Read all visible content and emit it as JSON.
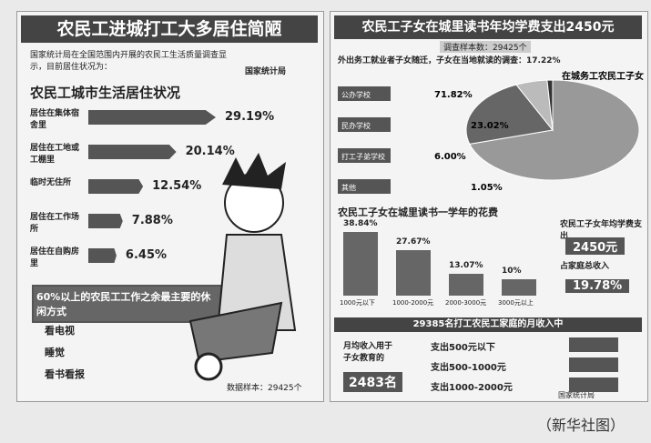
{
  "left": {
    "title": "农民工进城打工大多居住简陋",
    "intro": "国家统计局在全国范围内开展的农民工生活质量调查显示，目前居住状况为：",
    "source": "国家统计局",
    "heading": "农民工城市生活居住状况",
    "items": [
      {
        "label": "居住在集体宿舍里",
        "value": 29.19,
        "text": "29.19%"
      },
      {
        "label": "居住在工地或工棚里",
        "value": 20.14,
        "text": "20.14%"
      },
      {
        "label": "临时无住所",
        "value": 12.54,
        "text": "12.54%"
      },
      {
        "label": "居住在工作场所",
        "value": 7.88,
        "text": "7.88%"
      },
      {
        "label": "居住在自购房里",
        "value": 6.45,
        "text": "6.45%"
      }
    ],
    "leisure": {
      "title": "60%以上的农民工工作之余最主要的休闲方式",
      "items": [
        "看电视",
        "睡觉",
        "看书看报"
      ]
    },
    "sample": "数据样本：29425个"
  },
  "right": {
    "title": "农民工子女在城里读书年均学费支出2450元",
    "sample": "调查样本数：29425个",
    "note": "外出务工就业者子女随迁，子女在当地就读的调查：17.22%",
    "pie": {
      "title": "在城务工农民工子女",
      "slices": [
        {
          "label": "公办学校",
          "value": 71.82,
          "text": "71.82%"
        },
        {
          "label": "民办学校",
          "value": 23.02,
          "text": "23.02%"
        },
        {
          "label": "打工子弟学校",
          "value": 6.0,
          "text": "6.00%"
        },
        {
          "label": "其他",
          "value": 1.05,
          "text": "1.05%"
        }
      ]
    },
    "bars": {
      "title": "农民工子女在城里读书一学年的花费",
      "items": [
        {
          "category": "1000元以下",
          "value": 38.84,
          "text": "38.84%"
        },
        {
          "category": "1000-2000元",
          "value": 27.67,
          "text": "27.67%"
        },
        {
          "category": "2000-3000元",
          "value": 13.07,
          "text": "13.07%"
        },
        {
          "category": "3000元以上",
          "value": 10,
          "text": "10%"
        }
      ]
    },
    "stats": [
      {
        "label": "农民工子女年均学费支出",
        "text": "2450元"
      },
      {
        "label": "占家庭总收入",
        "text": "19.78%"
      }
    ],
    "income": {
      "title": "29385名打工农民工家庭的月收入中",
      "left_text": "月均收入用于子女教育的",
      "count": "2483名",
      "items": [
        "支出500元以下",
        "支出500-1000元",
        "支出1000-2000元"
      ]
    },
    "credit": "国家统计局"
  },
  "caption": "（新华社图）"
}
